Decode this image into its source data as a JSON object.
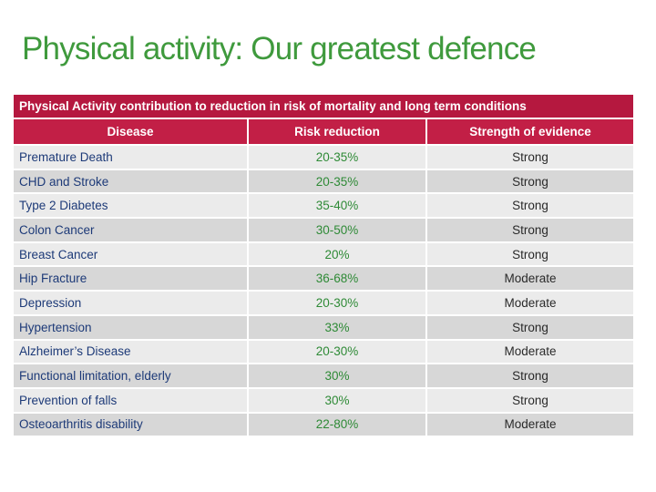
{
  "slide": {
    "title": "Physical activity: Our greatest defence"
  },
  "table": {
    "caption": "Physical Activity contribution to reduction in risk of mortality and long term conditions",
    "headers": {
      "disease": "Disease",
      "risk": "Risk reduction",
      "evidence": "Strength of evidence"
    },
    "rows": [
      {
        "disease": "Premature Death",
        "risk": "20-35%",
        "evidence": "Strong"
      },
      {
        "disease": "CHD and Stroke",
        "risk": "20-35%",
        "evidence": "Strong"
      },
      {
        "disease": "Type 2 Diabetes",
        "risk": "35-40%",
        "evidence": "Strong"
      },
      {
        "disease": "Colon Cancer",
        "risk": "30-50%",
        "evidence": "Strong"
      },
      {
        "disease": "Breast Cancer",
        "risk": "20%",
        "evidence": "Strong"
      },
      {
        "disease": "Hip Fracture",
        "risk": "36-68%",
        "evidence": "Moderate"
      },
      {
        "disease": "Depression",
        "risk": "20-30%",
        "evidence": "Moderate"
      },
      {
        "disease": "Hypertension",
        "risk": "33%",
        "evidence": "Strong"
      },
      {
        "disease": "Alzheimer’s Disease",
        "risk": "20-30%",
        "evidence": "Moderate"
      },
      {
        "disease": "Functional limitation, elderly",
        "risk": "30%",
        "evidence": "Strong"
      },
      {
        "disease": "Prevention of falls",
        "risk": "30%",
        "evidence": "Strong"
      },
      {
        "disease": "Osteoarthritis disability",
        "risk": "22-80%",
        "evidence": "Moderate"
      }
    ]
  },
  "colors": {
    "title_green": "#3f9a3d",
    "header_red": "#c21f46",
    "value_green": "#2e8a36"
  }
}
